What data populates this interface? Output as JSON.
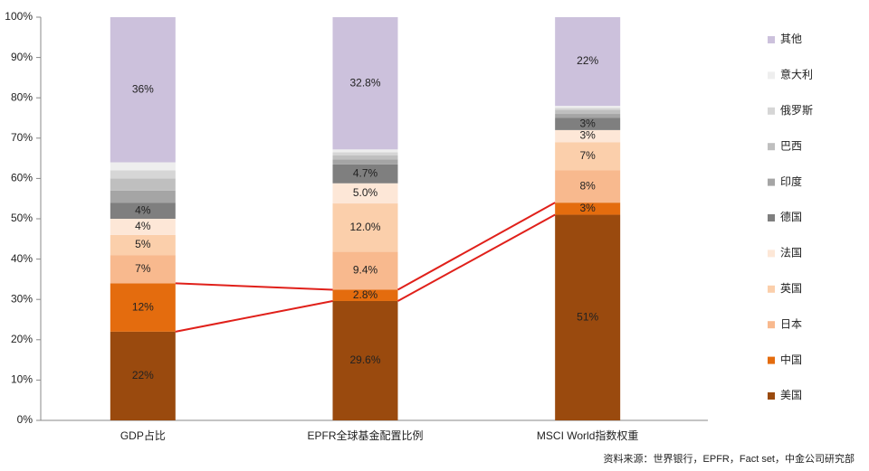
{
  "chart_data": {
    "type": "stacked_bar",
    "categories": [
      "GDP占比",
      "EPFR全球基金配置比例",
      "MSCI World指数权重"
    ],
    "ylim": [
      0,
      100
    ],
    "yticks": [
      {
        "value": 0,
        "label": "0%"
      },
      {
        "value": 10,
        "label": "10%"
      },
      {
        "value": 20,
        "label": "20%"
      },
      {
        "value": 30,
        "label": "30%"
      },
      {
        "value": 40,
        "label": "40%"
      },
      {
        "value": 50,
        "label": "50%"
      },
      {
        "value": 60,
        "label": "60%"
      },
      {
        "value": 70,
        "label": "70%"
      },
      {
        "value": 80,
        "label": "80%"
      },
      {
        "value": 90,
        "label": "90%"
      },
      {
        "value": 100,
        "label": "100%"
      }
    ],
    "grid": false,
    "legend": "right",
    "series": [
      {
        "name": "美国",
        "color": "#9a4a0e",
        "values": [
          22,
          29.6,
          51
        ],
        "value_labels": [
          "22%",
          "29.6%",
          "51%"
        ]
      },
      {
        "name": "中国",
        "color": "#e46c0e",
        "values": [
          12,
          2.8,
          3
        ],
        "value_labels": [
          "12%",
          "2.8%",
          "3%"
        ]
      },
      {
        "name": "日本",
        "color": "#f8b98e",
        "values": [
          7,
          9.4,
          8
        ],
        "value_labels": [
          "7%",
          "9.4%",
          "8%"
        ]
      },
      {
        "name": "英国",
        "color": "#fbcfab",
        "values": [
          5,
          12.0,
          7
        ],
        "value_labels": [
          "5%",
          "12.0%",
          "7%"
        ]
      },
      {
        "name": "法国",
        "color": "#fde7d7",
        "values": [
          4,
          5.0,
          3
        ],
        "value_labels": [
          "4%",
          "5.0%",
          "3%"
        ]
      },
      {
        "name": "德国",
        "color": "#7f7f7f",
        "values": [
          4,
          4.7,
          3
        ],
        "value_labels": [
          "4%",
          "4.7%",
          "3%"
        ]
      },
      {
        "name": "印度",
        "color": "#a5a5a5",
        "values": [
          3,
          1.2,
          1
        ],
        "value_labels": [
          null,
          null,
          null
        ]
      },
      {
        "name": "巴西",
        "color": "#bfbfbf",
        "values": [
          3,
          1.0,
          1
        ],
        "value_labels": [
          null,
          null,
          null
        ]
      },
      {
        "name": "俄罗斯",
        "color": "#d6d6d6",
        "values": [
          2,
          0.8,
          0.5
        ],
        "value_labels": [
          null,
          null,
          null
        ]
      },
      {
        "name": "意大利",
        "color": "#eeeeee",
        "values": [
          2,
          0.7,
          0.5
        ],
        "value_labels": [
          null,
          null,
          null
        ]
      },
      {
        "name": "其他",
        "color": "#ccc1dc",
        "values": [
          36,
          32.8,
          22
        ],
        "value_labels": [
          "36%",
          "32.8%",
          "22%"
        ]
      }
    ],
    "source": "资料来源：世界银行，EPFR，Fact set，中金公司研究部"
  }
}
